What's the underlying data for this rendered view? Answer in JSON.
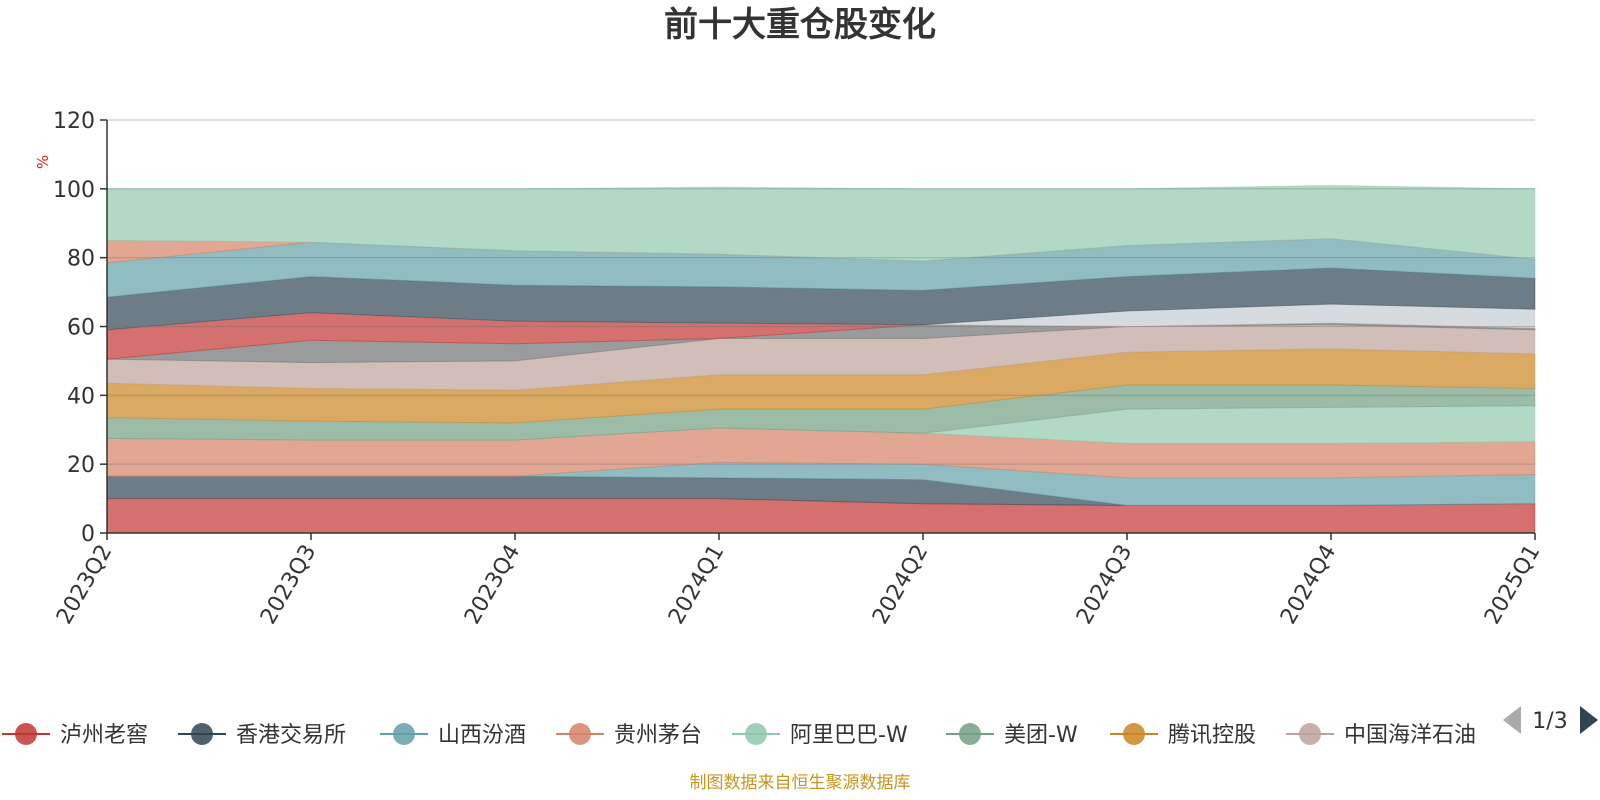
{
  "chart_data": {
    "type": "area",
    "stacked": true,
    "title": "前十大重仓股变化",
    "ylabel": "%",
    "ylim": [
      0,
      120
    ],
    "yticks": [
      0,
      20,
      40,
      60,
      80,
      100,
      120
    ],
    "categories": [
      "2023Q2",
      "2023Q3",
      "2023Q4",
      "2024Q1",
      "2024Q2",
      "2024Q3",
      "2024Q4",
      "2025Q1"
    ],
    "series": [
      {
        "name": "泸州老窖",
        "color": "#c23531",
        "values": [
          10.0,
          10.0,
          10.0,
          10.0,
          8.5,
          8.0,
          8.0,
          8.5
        ]
      },
      {
        "name": "香港交易所",
        "color": "#2f4554",
        "values": [
          6.5,
          6.5,
          6.5,
          6.0,
          7.0,
          0.0,
          0.0,
          0.0
        ]
      },
      {
        "name": "山西汾酒",
        "color": "#61a0a8",
        "values": [
          0.0,
          0.0,
          0.0,
          4.5,
          4.5,
          8.0,
          8.0,
          8.5
        ]
      },
      {
        "name": "贵州茅台",
        "color": "#d48265",
        "values": [
          11.0,
          10.5,
          10.5,
          10.0,
          9.0,
          10.0,
          10.0,
          9.5
        ]
      },
      {
        "name": "阿里巴巴-W",
        "color": "#91c7ae",
        "values": [
          0.0,
          0.0,
          0.0,
          0.0,
          0.0,
          10.0,
          10.5,
          10.5
        ]
      },
      {
        "name": "美团-W",
        "color": "#749f83",
        "values": [
          6.0,
          5.5,
          5.0,
          5.5,
          7.0,
          7.0,
          6.5,
          5.0
        ]
      },
      {
        "name": "腾讯控股",
        "color": "#ca8622",
        "values": [
          10.0,
          9.5,
          9.5,
          10.0,
          10.0,
          9.5,
          10.5,
          10.0
        ]
      },
      {
        "name": "中国海洋石油",
        "color": "#bda29a",
        "values": [
          7.0,
          7.5,
          8.5,
          10.5,
          10.5,
          7.5,
          7.0,
          7.0
        ]
      },
      {
        "name": "",
        "color": "#6e7074",
        "values": [
          0.0,
          6.5,
          5.0,
          0.0,
          4.0,
          0.0,
          0.5,
          0.5
        ]
      },
      {
        "name": "",
        "color": "#c23531",
        "values": [
          8.5,
          8.0,
          6.5,
          4.5,
          0.0,
          0.0,
          0.0,
          0.0
        ]
      },
      {
        "name": "",
        "color": "#c4ccd3",
        "values": [
          0.0,
          0.0,
          0.0,
          0.0,
          0.0,
          4.5,
          5.5,
          5.5
        ]
      },
      {
        "name": "",
        "color": "#2f4554",
        "values": [
          9.5,
          10.5,
          10.5,
          10.5,
          10.0,
          10.0,
          10.5,
          9.0
        ]
      },
      {
        "name": "",
        "color": "#61a0a8",
        "values": [
          10.0,
          10.0,
          10.0,
          9.5,
          8.5,
          9.0,
          8.5,
          5.5
        ]
      },
      {
        "name": "",
        "color": "#d48265",
        "values": [
          6.5,
          0.0,
          0.0,
          0.0,
          0.0,
          0.0,
          0.0,
          0.0
        ]
      },
      {
        "name": "",
        "color": "#91c7ae",
        "values": [
          15.0,
          15.5,
          18.0,
          19.5,
          21.0,
          16.5,
          15.5,
          20.5
        ]
      }
    ],
    "legend_position": "bottom"
  },
  "legend": {
    "items": [
      {
        "name": "泸州老窖",
        "color": "#c23531"
      },
      {
        "name": "香港交易所",
        "color": "#2f4554"
      },
      {
        "name": "山西汾酒",
        "color": "#61a0a8"
      },
      {
        "name": "贵州茅台",
        "color": "#d48265"
      },
      {
        "name": "阿里巴巴-W",
        "color": "#91c7ae"
      },
      {
        "name": "美团-W",
        "color": "#749f83"
      },
      {
        "name": "腾讯控股",
        "color": "#ca8622"
      },
      {
        "name": "中国海洋石油",
        "color": "#bda29a"
      }
    ],
    "page": "1/3"
  },
  "source": "制图数据来自恒生聚源数据库"
}
